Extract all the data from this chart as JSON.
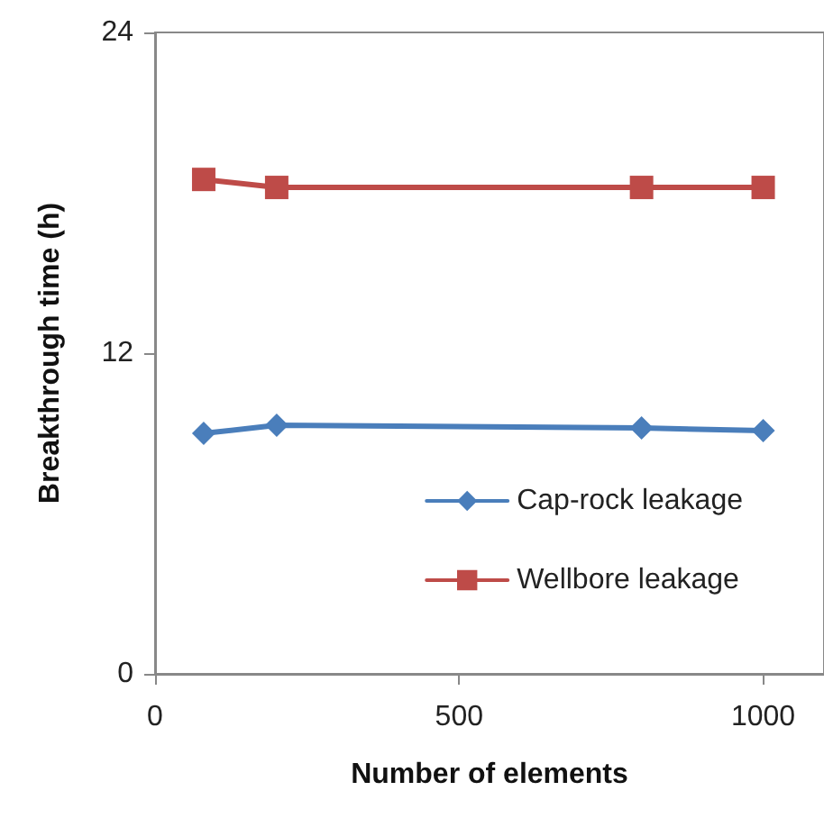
{
  "chart_data": {
    "type": "line",
    "xlabel": "Number of elements",
    "ylabel": "Breakthrough time (h)",
    "x": [
      80,
      200,
      800,
      1000
    ],
    "series": [
      {
        "name": "Cap-rock leakage",
        "color": "#4a7ebb",
        "values": [
          9.0,
          9.3,
          9.2,
          9.1
        ],
        "marker": "diamond"
      },
      {
        "name": "Wellbore leakage",
        "color": "#be4b48",
        "values": [
          18.5,
          18.2,
          18.2,
          18.2
        ],
        "marker": "square"
      }
    ],
    "xlim": [
      0,
      1100
    ],
    "xticks": [
      0,
      500,
      1000
    ],
    "ylim": [
      0,
      24
    ],
    "yticks": [
      0,
      12,
      24
    ],
    "grid": false,
    "legend": "bottom right",
    "line_style": "solid"
  }
}
